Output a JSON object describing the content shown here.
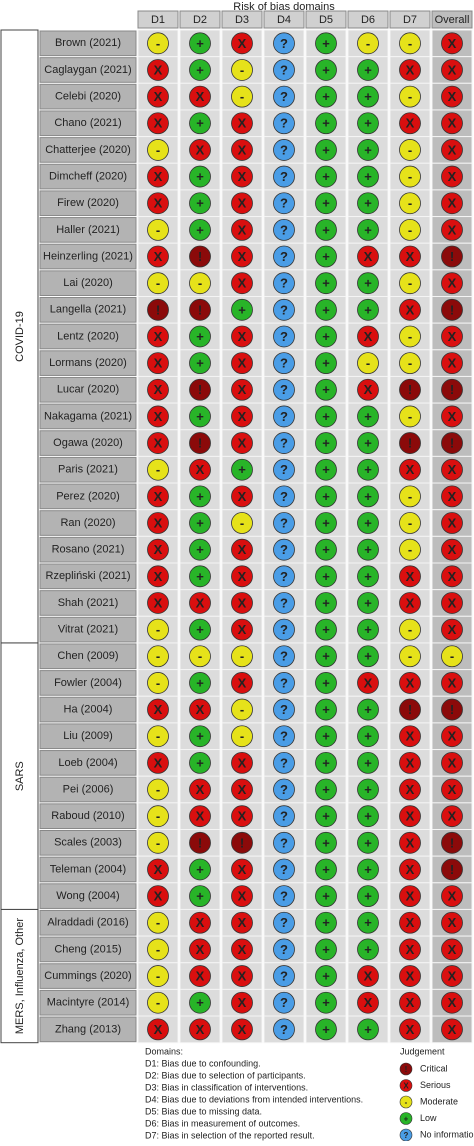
{
  "header": {
    "title": "Risk of bias domains",
    "columns": [
      "D1",
      "D2",
      "D3",
      "D4",
      "D5",
      "D6",
      "D7",
      "Overall"
    ]
  },
  "groups": [
    {
      "label": "COVID-19",
      "rows": [
        {
          "study": "Brown (2021)",
          "judgements": [
            "-",
            "+",
            "X",
            "?",
            "+",
            "-",
            "-",
            "X"
          ]
        },
        {
          "study": "Caglaygan (2021)",
          "judgements": [
            "X",
            "+",
            "-",
            "?",
            "+",
            "+",
            "X",
            "X"
          ]
        },
        {
          "study": "Celebi (2020)",
          "judgements": [
            "X",
            "X",
            "-",
            "?",
            "+",
            "+",
            "-",
            "X"
          ]
        },
        {
          "study": "Chano (2021)",
          "judgements": [
            "X",
            "+",
            "X",
            "?",
            "+",
            "+",
            "X",
            "X"
          ]
        },
        {
          "study": "Chatterjee (2020)",
          "judgements": [
            "-",
            "X",
            "X",
            "?",
            "+",
            "+",
            "-",
            "X"
          ]
        },
        {
          "study": "Dimcheff (2020)",
          "judgements": [
            "X",
            "+",
            "X",
            "?",
            "+",
            "+",
            "-",
            "X"
          ]
        },
        {
          "study": "Firew (2020)",
          "judgements": [
            "X",
            "+",
            "X",
            "?",
            "+",
            "+",
            "-",
            "X"
          ]
        },
        {
          "study": "Haller (2021)",
          "judgements": [
            "-",
            "+",
            "X",
            "?",
            "+",
            "+",
            "-",
            "X"
          ]
        },
        {
          "study": "Heinzerling (2021)",
          "judgements": [
            "X",
            "!",
            "X",
            "?",
            "+",
            "X",
            "X",
            "!"
          ]
        },
        {
          "study": "Lai (2020)",
          "judgements": [
            "-",
            "-",
            "X",
            "?",
            "+",
            "+",
            "-",
            "X"
          ]
        },
        {
          "study": "Langella (2021)",
          "judgements": [
            "!",
            "!",
            "+",
            "?",
            "+",
            "+",
            "X",
            "!"
          ]
        },
        {
          "study": "Lentz (2020)",
          "judgements": [
            "X",
            "+",
            "X",
            "?",
            "+",
            "X",
            "-",
            "X"
          ]
        },
        {
          "study": "Lormans (2020)",
          "judgements": [
            "X",
            "+",
            "X",
            "?",
            "+",
            "-",
            "-",
            "X"
          ]
        },
        {
          "study": "Lucar (2020)",
          "judgements": [
            "X",
            "!",
            "X",
            "?",
            "+",
            "X",
            "!",
            "!"
          ]
        },
        {
          "study": "Nakagama (2021)",
          "judgements": [
            "X",
            "+",
            "X",
            "?",
            "+",
            "+",
            "-",
            "X"
          ]
        },
        {
          "study": "Ogawa (2020)",
          "judgements": [
            "X",
            "!",
            "X",
            "?",
            "+",
            "+",
            "!",
            "!"
          ]
        },
        {
          "study": "Paris (2021)",
          "judgements": [
            "-",
            "X",
            "+",
            "?",
            "+",
            "+",
            "X",
            "X"
          ]
        },
        {
          "study": "Perez (2020)",
          "judgements": [
            "X",
            "+",
            "X",
            "?",
            "+",
            "+",
            "-",
            "X"
          ]
        },
        {
          "study": "Ran (2020)",
          "judgements": [
            "X",
            "+",
            "-",
            "?",
            "+",
            "+",
            "-",
            "X"
          ]
        },
        {
          "study": "Rosano (2021)",
          "judgements": [
            "X",
            "+",
            "X",
            "?",
            "+",
            "+",
            "-",
            "X"
          ]
        },
        {
          "study": "Rzepliński (2021)",
          "judgements": [
            "X",
            "+",
            "X",
            "?",
            "+",
            "+",
            "X",
            "X"
          ]
        },
        {
          "study": "Shah (2021)",
          "judgements": [
            "X",
            "X",
            "X",
            "?",
            "+",
            "+",
            "X",
            "X"
          ]
        },
        {
          "study": "Vitrat (2021)",
          "judgements": [
            "-",
            "+",
            "X",
            "?",
            "+",
            "+",
            "-",
            "X"
          ]
        }
      ]
    },
    {
      "label": "SARS",
      "rows": [
        {
          "study": "Chen (2009)",
          "judgements": [
            "-",
            "-",
            "-",
            "?",
            "+",
            "+",
            "-",
            "-"
          ]
        },
        {
          "study": "Fowler (2004)",
          "judgements": [
            "-",
            "+",
            "X",
            "?",
            "+",
            "X",
            "X",
            "X"
          ]
        },
        {
          "study": "Ha (2004)",
          "judgements": [
            "X",
            "X",
            "-",
            "?",
            "+",
            "+",
            "!",
            "!"
          ]
        },
        {
          "study": "Liu (2009)",
          "judgements": [
            "-",
            "+",
            "-",
            "?",
            "+",
            "+",
            "X",
            "X"
          ]
        },
        {
          "study": "Loeb (2004)",
          "judgements": [
            "X",
            "+",
            "X",
            "?",
            "+",
            "+",
            "X",
            "X"
          ]
        },
        {
          "study": "Pei (2006)",
          "judgements": [
            "-",
            "X",
            "X",
            "?",
            "+",
            "+",
            "X",
            "X"
          ]
        },
        {
          "study": "Raboud (2010)",
          "judgements": [
            "-",
            "X",
            "X",
            "?",
            "+",
            "+",
            "X",
            "X"
          ]
        },
        {
          "study": "Scales (2003)",
          "judgements": [
            "-",
            "!",
            "!",
            "?",
            "+",
            "+",
            "X",
            "!"
          ]
        },
        {
          "study": "Teleman (2004)",
          "judgements": [
            "X",
            "+",
            "X",
            "?",
            "+",
            "+",
            "X",
            "!"
          ]
        },
        {
          "study": "Wong (2004)",
          "judgements": [
            "X",
            "+",
            "X",
            "?",
            "+",
            "+",
            "X",
            "X"
          ]
        }
      ]
    },
    {
      "label": "MERS, Influenza, Other",
      "rows": [
        {
          "study": "Alraddadi (2016)",
          "judgements": [
            "-",
            "X",
            "X",
            "?",
            "+",
            "+",
            "X",
            "X"
          ]
        },
        {
          "study": "Cheng (2015)",
          "judgements": [
            "-",
            "X",
            "X",
            "?",
            "+",
            "+",
            "X",
            "X"
          ]
        },
        {
          "study": "Cummings (2020)",
          "judgements": [
            "-",
            "X",
            "X",
            "?",
            "+",
            "X",
            "X",
            "X"
          ]
        },
        {
          "study": "Macintyre (2014)",
          "judgements": [
            "-",
            "+",
            "X",
            "?",
            "+",
            "X",
            "X",
            "X"
          ]
        },
        {
          "study": "Zhang (2013)",
          "judgements": [
            "X",
            "X",
            "X",
            "?",
            "+",
            "+",
            "X",
            "X"
          ]
        }
      ]
    }
  ],
  "legend": {
    "domains_title": "Domains:",
    "domains": [
      "D1: Bias due to confounding.",
      "D2: Bias due to selection of participants.",
      "D3: Bias in classification of interventions.",
      "D4: Bias due to deviations from intended interventions.",
      "D5: Bias due to missing data.",
      "D6: Bias in measurement of outcomes.",
      "D7: Bias in selection of the reported result."
    ],
    "judgement_title": "Judgement",
    "items": [
      {
        "symbol": "!",
        "label": "Critical",
        "color": "#8b0a0a"
      },
      {
        "symbol": "X",
        "label": "Serious",
        "color": "#d90f0f"
      },
      {
        "symbol": "-",
        "label": "Moderate",
        "color": "#e6e21a"
      },
      {
        "symbol": "+",
        "label": "Low",
        "color": "#28b428"
      },
      {
        "symbol": "?",
        "label": "No information",
        "color": "#4a9de6"
      }
    ]
  }
}
